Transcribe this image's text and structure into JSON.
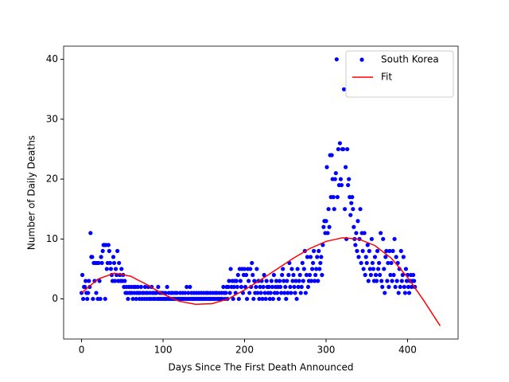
{
  "chart_data": {
    "type": "scatter",
    "xlabel": "Days Since The First Death Announced",
    "ylabel": "Number of Daily Deaths",
    "xlim": [
      -22,
      462
    ],
    "ylim": [
      -6.7,
      42.2
    ],
    "xticks": [
      0,
      100,
      200,
      300,
      400
    ],
    "yticks": [
      0,
      10,
      20,
      30,
      40
    ],
    "legend": "upper right",
    "series": [
      {
        "name": "South Korea",
        "type": "scatter",
        "color": "#0000ff",
        "x": [
          0,
          1,
          2,
          3,
          4,
          5,
          6,
          7,
          8,
          9,
          10,
          11,
          12,
          13,
          14,
          15,
          16,
          17,
          18,
          19,
          20,
          21,
          22,
          23,
          24,
          25,
          26,
          27,
          28,
          29,
          30,
          31,
          32,
          33,
          34,
          35,
          36,
          37,
          38,
          39,
          40,
          41,
          42,
          43,
          44,
          45,
          46,
          47,
          48,
          49,
          50,
          51,
          52,
          53,
          54,
          55,
          56,
          57,
          58,
          59,
          60,
          61,
          62,
          63,
          64,
          65,
          66,
          67,
          68,
          69,
          70,
          71,
          72,
          73,
          74,
          75,
          76,
          77,
          78,
          79,
          80,
          81,
          82,
          83,
          84,
          85,
          86,
          87,
          88,
          89,
          90,
          91,
          92,
          93,
          94,
          95,
          96,
          97,
          98,
          99,
          100,
          101,
          102,
          103,
          104,
          105,
          106,
          107,
          108,
          109,
          110,
          111,
          112,
          113,
          114,
          115,
          116,
          117,
          118,
          119,
          120,
          121,
          122,
          123,
          124,
          125,
          126,
          127,
          128,
          129,
          130,
          131,
          132,
          133,
          134,
          135,
          136,
          137,
          138,
          139,
          140,
          141,
          142,
          143,
          144,
          145,
          146,
          147,
          148,
          149,
          150,
          151,
          152,
          153,
          154,
          155,
          156,
          157,
          158,
          159,
          160,
          161,
          162,
          163,
          164,
          165,
          166,
          167,
          168,
          169,
          170,
          171,
          172,
          173,
          174,
          175,
          176,
          177,
          178,
          179,
          180,
          181,
          182,
          183,
          184,
          185,
          186,
          187,
          188,
          189,
          190,
          191,
          192,
          193,
          194,
          195,
          196,
          197,
          198,
          199,
          200,
          201,
          202,
          203,
          204,
          205,
          206,
          207,
          208,
          209,
          210,
          211,
          212,
          213,
          214,
          215,
          216,
          217,
          218,
          219,
          220,
          221,
          222,
          223,
          224,
          225,
          226,
          227,
          228,
          229,
          230,
          231,
          232,
          233,
          234,
          235,
          236,
          237,
          238,
          239,
          240,
          241,
          242,
          243,
          244,
          245,
          246,
          247,
          248,
          249,
          250,
          251,
          252,
          253,
          254,
          255,
          256,
          257,
          258,
          259,
          260,
          261,
          262,
          263,
          264,
          265,
          266,
          267,
          268,
          269,
          270,
          271,
          272,
          273,
          274,
          275,
          276,
          277,
          278,
          279,
          280,
          281,
          282,
          283,
          284,
          285,
          286,
          287,
          288,
          289,
          290,
          291,
          292,
          293,
          294,
          295,
          296,
          297,
          298,
          299,
          300,
          301,
          302,
          303,
          304,
          305,
          306,
          307,
          308,
          309,
          310,
          311,
          312,
          313,
          314,
          315,
          316,
          317,
          318,
          319,
          320,
          321,
          322,
          323,
          324,
          325,
          326,
          327,
          328,
          329,
          330,
          331,
          332,
          333,
          334,
          335,
          336,
          337,
          338,
          339,
          340,
          341,
          342,
          343,
          344,
          345,
          346,
          347,
          348,
          349,
          350,
          351,
          352,
          353,
          354,
          355,
          356,
          357,
          358,
          359,
          360,
          361,
          362,
          363,
          364,
          365,
          366,
          367,
          368,
          369,
          370,
          371,
          372,
          373,
          374,
          375,
          376,
          377,
          378,
          379,
          380,
          381,
          382,
          383,
          384,
          385,
          386,
          387,
          388,
          389,
          390,
          391,
          392,
          393,
          394,
          395,
          396,
          397,
          398,
          399,
          400,
          401,
          402,
          403,
          404,
          405,
          406,
          407,
          408,
          409
        ],
        "values": [
          1,
          4,
          0,
          2,
          2,
          3,
          1,
          0,
          1,
          3,
          2,
          11,
          7,
          7,
          0,
          6,
          3,
          6,
          1,
          6,
          0,
          6,
          3,
          0,
          7,
          6,
          8,
          9,
          9,
          0,
          9,
          5,
          6,
          9,
          8,
          6,
          5,
          4,
          3,
          7,
          6,
          3,
          5,
          4,
          8,
          3,
          6,
          4,
          3,
          5,
          3,
          4,
          2,
          3,
          1,
          2,
          1,
          0,
          2,
          1,
          1,
          2,
          1,
          0,
          2,
          1,
          2,
          0,
          1,
          2,
          1,
          0,
          1,
          2,
          0,
          1,
          1,
          0,
          2,
          1,
          0,
          1,
          2,
          0,
          1,
          0,
          2,
          1,
          0,
          1,
          0,
          1,
          1,
          0,
          2,
          0,
          1,
          0,
          1,
          0,
          1,
          0,
          0,
          1,
          0,
          2,
          0,
          1,
          0,
          0,
          1,
          0,
          1,
          0,
          0,
          1,
          0,
          1,
          0,
          0,
          0,
          1,
          0,
          0,
          1,
          0,
          0,
          1,
          0,
          2,
          0,
          1,
          0,
          2,
          0,
          1,
          0,
          0,
          1,
          0,
          0,
          1,
          0,
          0,
          1,
          0,
          0,
          1,
          0,
          0,
          1,
          0,
          0,
          1,
          0,
          1,
          0,
          0,
          1,
          0,
          0,
          1,
          0,
          0,
          1,
          0,
          1,
          0,
          0,
          1,
          0,
          0,
          1,
          0,
          2,
          1,
          0,
          1,
          2,
          0,
          2,
          3,
          1,
          5,
          2,
          3,
          0,
          2,
          3,
          1,
          3,
          2,
          4,
          0,
          5,
          3,
          2,
          5,
          1,
          4,
          5,
          2,
          4,
          0,
          5,
          3,
          1,
          5,
          2,
          6,
          4,
          0,
          3,
          1,
          2,
          5,
          1,
          3,
          0,
          2,
          1,
          3,
          0,
          2,
          4,
          1,
          0,
          3,
          2,
          1,
          2,
          0,
          1,
          3,
          2,
          0,
          4,
          1,
          2,
          3,
          1,
          2,
          0,
          3,
          2,
          1,
          4,
          5,
          3,
          1,
          2,
          0,
          3,
          1,
          4,
          6,
          2,
          1,
          5,
          3,
          4,
          2,
          1,
          3,
          0,
          5,
          2,
          3,
          4,
          1,
          2,
          6,
          3,
          5,
          8,
          1,
          4,
          7,
          2,
          3,
          4,
          7,
          3,
          5,
          6,
          8,
          3,
          4,
          5,
          7,
          3,
          8,
          5,
          6,
          7,
          4,
          9,
          12,
          13,
          11,
          13,
          22,
          11,
          15,
          12,
          24,
          17,
          24,
          20,
          17,
          15,
          20,
          21,
          40,
          17,
          25,
          19,
          26,
          20,
          19,
          25,
          25,
          35,
          15,
          22,
          10,
          25,
          19,
          20,
          17,
          14,
          16,
          17,
          15,
          12,
          10,
          9,
          11,
          8,
          13,
          7,
          10,
          15,
          6,
          11,
          8,
          5,
          11,
          4,
          7,
          6,
          9,
          3,
          8,
          5,
          4,
          10,
          6,
          5,
          3,
          7,
          4,
          3,
          8,
          5,
          6,
          4,
          11,
          3,
          2,
          10,
          5,
          1,
          7,
          8,
          3,
          6,
          2,
          8,
          4,
          6,
          3,
          8,
          4,
          10,
          2,
          7,
          3,
          6,
          1,
          5,
          2,
          8,
          3,
          4,
          7,
          2,
          1,
          5,
          3,
          4,
          2,
          1,
          3,
          4,
          2,
          3,
          4,
          3,
          2
        ]
      },
      {
        "name": "Fit",
        "type": "line",
        "color": "#ff0000",
        "x": [
          0,
          20,
          40,
          60,
          80,
          100,
          120,
          140,
          160,
          180,
          200,
          220,
          240,
          260,
          280,
          300,
          320,
          340,
          360,
          380,
          400,
          420,
          440
        ],
        "values": [
          1.0,
          3.3,
          4.3,
          3.8,
          2.4,
          0.8,
          -0.4,
          -0.9,
          -0.8,
          0.0,
          1.5,
          3.2,
          5.0,
          6.8,
          8.4,
          9.6,
          10.2,
          10.0,
          8.9,
          6.8,
          3.6,
          -0.3,
          -4.5
        ]
      }
    ]
  }
}
